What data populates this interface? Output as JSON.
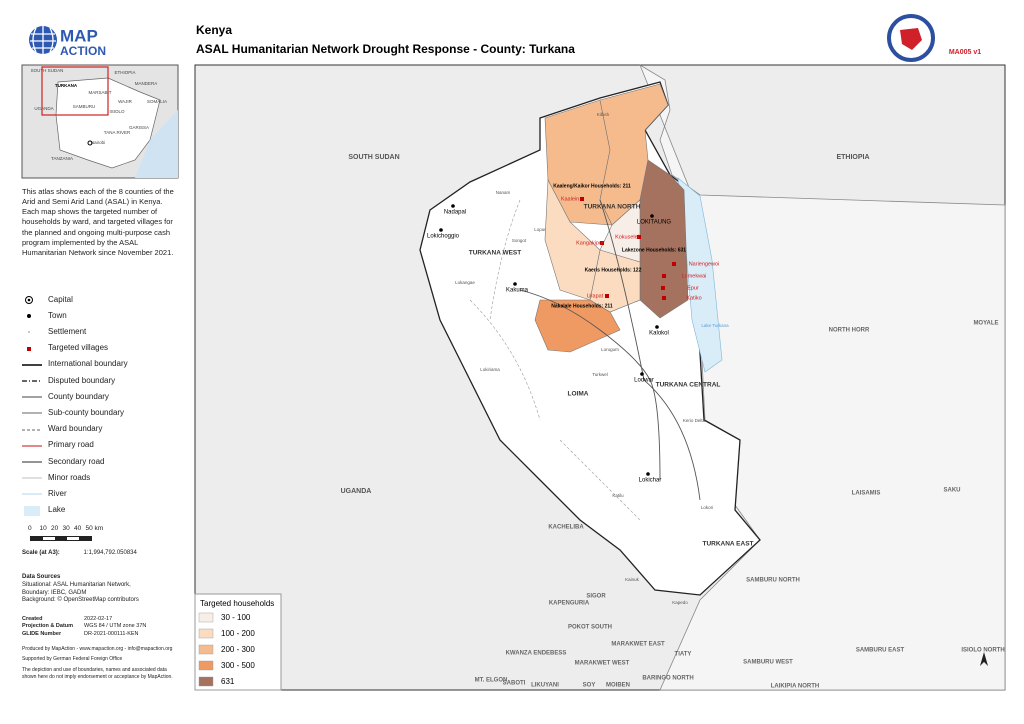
{
  "header": {
    "country": "Kenya",
    "title": "ASAL Humanitarian Network Drought Response - County: Turkana",
    "map_id": "MA005 v1"
  },
  "logo": {
    "line1": "MAP",
    "line2": "ACTION"
  },
  "inset_labels": [
    "SOUTH SUDAN",
    "ETHIOPIA",
    "TURKANA",
    "MARSABIT",
    "MANDERA",
    "UGANDA",
    "WAJIR",
    "SOMALIA",
    "SAMBURU",
    "ISIOLO",
    "TANA RIVER",
    "GARISSA",
    "TANZANIA",
    "Nairobi"
  ],
  "description": "This atlas shows each of the 8 counties of the Arid and Semi Arid Land (ASAL) in Kenya. Each map shows the targeted number of households by ward, and targeted villages for the planned and ongoing multi-purpose cash program implemented by the ASAL Humanitarian Network since November 2021.",
  "legend": [
    "Capital",
    "Town",
    "Settlement",
    "Targeted villages",
    "International boundary",
    "Disputed boundary",
    "County boundary",
    "Sub-county boundary",
    "Ward boundary",
    "Primary road",
    "Secondary road",
    "Minor roads",
    "River",
    "Lake"
  ],
  "scale": {
    "ticks": [
      "0",
      "10",
      "20",
      "30",
      "40",
      "50 km"
    ],
    "label": "Scale (at A3):",
    "value": "1:1,994,792.050834"
  },
  "data_sources": {
    "title": "Data Sources",
    "lines": [
      "Situational: ASAL Humanitarian Network,",
      "Boundary: IEBC, GADM",
      "Background: © OpenStreetMap contributors"
    ]
  },
  "metadata": [
    [
      "Created",
      "2022-02-17"
    ],
    [
      "Projection & Datum",
      "WGS 84 / UTM zone 37N"
    ],
    [
      "GLIDE Number",
      "DR-2021-000111-KEN"
    ]
  ],
  "credits": [
    "Produced by MapAction - www.mapaction.org - info@mapaction.org",
    "Supported by German Federal Foreign Office",
    "The depiction and use of boundaries, names and associated data shown here do not imply endorsement or acceptance by MapAction."
  ],
  "map_labels": {
    "countries": [
      "SOUTH SUDAN",
      "ETHIOPIA",
      "UGANDA"
    ],
    "regions": [
      "NORTH HORR",
      "MOYALE",
      "LAISAMIS",
      "SAKU",
      "SAMBURU NORTH",
      "SAMBURU EAST",
      "ISIOLO NORTH",
      "KACHELIBA",
      "SIGOR",
      "KAPENGURIA",
      "POKOT SOUTH",
      "MARAKWET EAST",
      "MARAKWET WEST",
      "TIATY",
      "KWANZA ENDEBESS",
      "SABOTI",
      "LIKUYANI",
      "SOY",
      "MOIBEN",
      "BARINGO NORTH",
      "MT. ELGON",
      "LAIKIPIA NORTH",
      "SAMBURU WEST"
    ],
    "subcounties": [
      "TURKANA NORTH",
      "TURKANA WEST",
      "LOIMA",
      "TURKANA CENTRAL",
      "TURKANA EAST"
    ],
    "towns": [
      "Nadapal",
      "Lokichoggio",
      "Kakuma",
      "LOKITAUNG",
      "Kalokol",
      "Lodwar",
      "Lokichar"
    ],
    "settlements": [
      "Kibish",
      "Nanam",
      "Songot",
      "Lopur",
      "Lokangae",
      "Lorugum",
      "Turkwel",
      "Kerio Delta",
      "Katilu",
      "Lokori",
      "Kapedo",
      "Lake Turkana",
      "Lokiriama",
      "Kainuk"
    ]
  },
  "ward_callouts": [
    "Kaaleng/Kaikor Households: 211",
    "Lakezone Households: 631",
    "Kaeris Households: 122",
    "Nakalale Households: 211"
  ],
  "villages": [
    "Kaalein",
    "Kangakipur",
    "Kokuselei",
    "Nariengewoi",
    "Lomekwai",
    "Epur",
    "Katiko",
    "Urapat"
  ],
  "households_legend": {
    "title": "Targeted households",
    "classes": [
      {
        "label": "30 - 100",
        "color": "#f7eee8"
      },
      {
        "label": "100 - 200",
        "color": "#fbdcc0"
      },
      {
        "label": "200 - 300",
        "color": "#f6bb8d"
      },
      {
        "label": "300 - 500",
        "color": "#ef9a63"
      },
      {
        "label": "631",
        "color": "#a5725f"
      }
    ]
  }
}
